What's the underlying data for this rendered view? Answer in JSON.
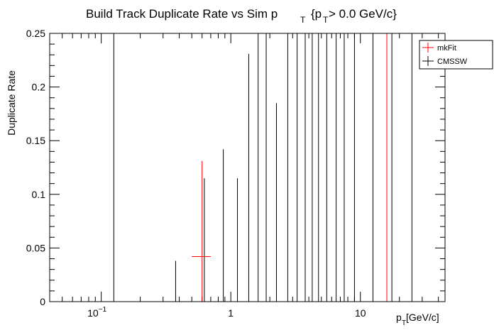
{
  "chart_data": {
    "type": "scatter",
    "title": "Build Track Duplicate Rate vs Sim p",
    "title_sub": "T",
    "title_cut": "{p",
    "title_cut_sub": "T",
    "title_cut_tail": " > 0.0 GeV/c}",
    "xlabel": "p",
    "xlabel_sub": "T",
    "xlabel_unit": " [GeV/c]",
    "ylabel": "Duplicate Rate",
    "xscale": "log",
    "xlim": [
      0.04,
      45
    ],
    "ylim": [
      0,
      0.25
    ],
    "legend_position": "top-right",
    "x_tick_labels": [
      {
        "value": 0.1,
        "base": "10",
        "exp": "−1"
      },
      {
        "value": 1,
        "base": "1",
        "exp": ""
      },
      {
        "value": 10,
        "base": "10",
        "exp": ""
      }
    ],
    "y_tick_labels": [
      "0",
      "0.05",
      "0.1",
      "0.15",
      "0.2",
      "0.25"
    ],
    "series": [
      {
        "name": "mkFit",
        "color": "#ff0000",
        "points": [
          {
            "x": 0.6,
            "xlo": 0.5,
            "xhi": 0.7,
            "y": 0.042,
            "ylo": 0.0,
            "yhi": 0.131
          },
          {
            "x": 16,
            "xlo": 12.5,
            "xhi": 20,
            "y": 0.0,
            "ylo": 0.0,
            "yhi": 0.25
          },
          {
            "x": 6.5,
            "xlo": 6.2,
            "xhi": 6.8,
            "y": 0.0,
            "ylo": 0.0,
            "yhi": 0.0
          }
        ]
      },
      {
        "name": "CMSSW",
        "color": "#000000",
        "points": [
          {
            "x": 0.125,
            "y": 0.0,
            "ylo": 0.0,
            "yhi": 0.25
          },
          {
            "x": 0.375,
            "y": 0.0,
            "ylo": 0.0,
            "yhi": 0.038
          },
          {
            "x": 0.625,
            "y": 0.0,
            "ylo": 0.0,
            "yhi": 0.115
          },
          {
            "x": 0.875,
            "y": 0.0,
            "ylo": 0.0,
            "yhi": 0.142
          },
          {
            "x": 1.125,
            "y": 0.0,
            "ylo": 0.0,
            "yhi": 0.115
          },
          {
            "x": 1.375,
            "y": 0.0,
            "ylo": 0.0,
            "yhi": 0.231
          },
          {
            "x": 1.625,
            "y": 0.0,
            "ylo": 0.0,
            "yhi": 0.25
          },
          {
            "x": 1.875,
            "y": 0.0,
            "ylo": 0.0,
            "yhi": 0.25
          },
          {
            "x": 2.25,
            "y": 0.0,
            "ylo": 0.0,
            "yhi": 0.185
          },
          {
            "x": 2.75,
            "y": 0.0,
            "ylo": 0.0,
            "yhi": 0.25
          },
          {
            "x": 3.25,
            "y": 0.0,
            "ylo": 0.0,
            "yhi": 0.25
          },
          {
            "x": 3.75,
            "y": 0.0,
            "ylo": 0.0,
            "yhi": 0.25
          },
          {
            "x": 4.25,
            "y": 0.0,
            "ylo": 0.0,
            "yhi": 0.25
          },
          {
            "x": 4.75,
            "y": 0.0,
            "ylo": 0.0,
            "yhi": 0.25
          },
          {
            "x": 5.5,
            "y": 0.0,
            "ylo": 0.0,
            "yhi": 0.25
          },
          {
            "x": 6.5,
            "y": 0.0,
            "ylo": 0.0,
            "yhi": 0.25
          },
          {
            "x": 7.5,
            "y": 0.0,
            "ylo": 0.0,
            "yhi": 0.25
          },
          {
            "x": 9.0,
            "y": 0.0,
            "ylo": 0.0,
            "yhi": 0.25
          },
          {
            "x": 12.5,
            "y": 0.0,
            "ylo": 0.0,
            "yhi": 0.25
          },
          {
            "x": 17.5,
            "y": 0.0,
            "ylo": 0.0,
            "yhi": 0.25
          },
          {
            "x": 25.0,
            "y": 0.0,
            "ylo": 0.0,
            "yhi": 0.25
          }
        ]
      }
    ]
  }
}
